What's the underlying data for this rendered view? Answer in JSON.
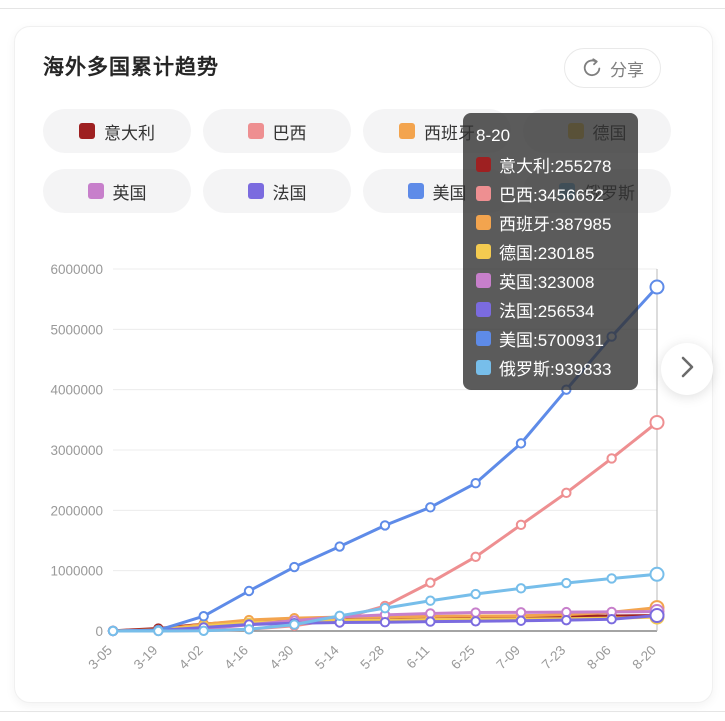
{
  "header": {
    "title": "海外多国累计趋势",
    "share_label": "分享",
    "share_icon": "circular-arrow-share"
  },
  "nav": {
    "next_icon": "chevron-right"
  },
  "tooltip": {
    "date": "8-20",
    "separator": ":"
  },
  "colors": {
    "card_bg": "#ffffff",
    "pill_bg": "#f4f4f5",
    "tooltip_bg": "rgba(50,50,50,0.8)",
    "grid_line": "#ececec",
    "axis_line": "#858585",
    "axis_text": "#999999",
    "hover_line": "#b9b9b9",
    "title_text": "#262626"
  },
  "chart_data": {
    "type": "line",
    "title": "海外多国累计趋势",
    "x": [
      "3-05",
      "3-19",
      "4-02",
      "4-16",
      "4-30",
      "5-14",
      "5-28",
      "6-11",
      "6-25",
      "7-09",
      "7-23",
      "8-06",
      "8-20"
    ],
    "xlabel": "",
    "ylabel": "",
    "ylim": [
      0,
      6000000
    ],
    "yticks": [
      0,
      1000000,
      2000000,
      3000000,
      4000000,
      5000000,
      6000000
    ],
    "grid": true,
    "legend_position": "top",
    "hover_index": 12,
    "series": [
      {
        "name": "意大利",
        "color": "#9E2021",
        "values": [
          3100,
          41000,
          115000,
          168000,
          204000,
          223000,
          231000,
          236000,
          239000,
          242000,
          245000,
          249000,
          255278
        ]
      },
      {
        "name": "巴西",
        "color": "#EE8F91",
        "values": [
          0,
          600,
          8000,
          30000,
          87000,
          200000,
          415000,
          800000,
          1230000,
          1760000,
          2290000,
          2860000,
          3456652
        ]
      },
      {
        "name": "西班牙",
        "color": "#F3A44E",
        "values": [
          260,
          18000,
          112000,
          182000,
          213000,
          229000,
          237000,
          243000,
          248000,
          253000,
          272000,
          310000,
          387985
        ]
      },
      {
        "name": "德国",
        "color": "#F4CB50",
        "values": [
          500,
          15000,
          85000,
          137000,
          161000,
          174000,
          180000,
          186000,
          192000,
          198000,
          204000,
          213000,
          230185
        ]
      },
      {
        "name": "英国",
        "color": "#C77FCB",
        "values": [
          115,
          3300,
          34000,
          104000,
          172000,
          234000,
          268000,
          291000,
          306000,
          309000,
          313000,
          316000,
          323008
        ]
      },
      {
        "name": "法国",
        "color": "#7B6BDF",
        "values": [
          420,
          11000,
          59000,
          108000,
          129000,
          141000,
          146000,
          156000,
          161000,
          170000,
          180000,
          195000,
          256534
        ]
      },
      {
        "name": "美国",
        "color": "#5E8BE8",
        "values": [
          200,
          14000,
          245000,
          663000,
          1060000,
          1400000,
          1750000,
          2050000,
          2450000,
          3110000,
          4000000,
          4880000,
          5700931
        ]
      },
      {
        "name": "俄罗斯",
        "color": "#77BEEA",
        "values": [
          10,
          200,
          3500,
          28000,
          106000,
          252000,
          379000,
          502000,
          613000,
          707000,
          795000,
          871000,
          939833
        ]
      }
    ]
  }
}
